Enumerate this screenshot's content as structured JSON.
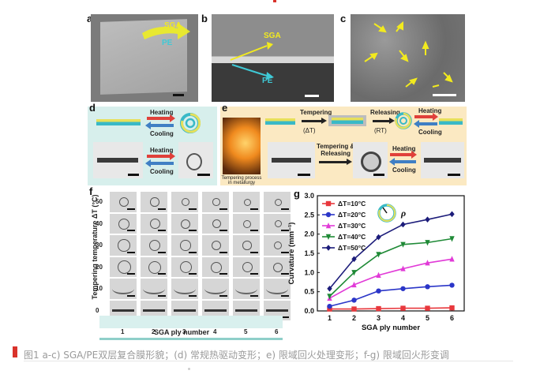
{
  "panels": {
    "a": {
      "letter": "a",
      "sga": "SGA",
      "pe": "PE"
    },
    "b": {
      "letter": "b",
      "sga": "SGA",
      "pe": "PE"
    },
    "c": {
      "letter": "c"
    },
    "d": {
      "letter": "d",
      "heating": "Heating",
      "cooling": "Cooling",
      "heating2": "Heating",
      "cooling2": "Cooling"
    },
    "e": {
      "letter": "e",
      "tempering": "Tempering",
      "delta_t": "(ΔT)",
      "releasing": "Releasing",
      "rt": "(RT)",
      "heating": "Heating",
      "cooling": "Cooling",
      "tempering_releasing": "Tempering &\nReleasing",
      "heating2": "Heating",
      "cooling2": "Cooling",
      "metallurgy": "Tempering process\nin metallurgy"
    },
    "f": {
      "letter": "f",
      "ylabel": "Tempering temperature ΔT (°C)",
      "xlabel": "SGA ply number",
      "rows": [
        "50",
        "40",
        "30",
        "20",
        "10",
        "0"
      ],
      "cols": [
        "1",
        "2",
        "3",
        "4",
        "5",
        "6"
      ]
    }
  },
  "chart_data": {
    "type": "line",
    "panel_letter": "g",
    "xlabel": "SGA ply number",
    "ylabel": "Curvature (mm⁻¹)",
    "x": [
      1,
      2,
      3,
      4,
      5,
      6
    ],
    "xlim": [
      0.5,
      6.5
    ],
    "ylim": [
      0,
      3.0
    ],
    "yticks": [
      "0.0",
      "0.5",
      "1.0",
      "1.5",
      "2.0",
      "2.5",
      "3.0"
    ],
    "xticks": [
      "1",
      "2",
      "3",
      "4",
      "5",
      "6"
    ],
    "legend_position": "top-left",
    "rho": "ρ",
    "series": [
      {
        "name": "ΔT=10°C",
        "color": "#e8383d",
        "marker": "square",
        "values": [
          0.05,
          0.05,
          0.06,
          0.07,
          0.07,
          0.08
        ]
      },
      {
        "name": "ΔT=20°C",
        "color": "#2b36c8",
        "marker": "circle",
        "values": [
          0.12,
          0.28,
          0.52,
          0.58,
          0.63,
          0.67
        ]
      },
      {
        "name": "ΔT=30°C",
        "color": "#e13ad7",
        "marker": "triangle-up",
        "values": [
          0.33,
          0.68,
          0.93,
          1.1,
          1.25,
          1.35
        ]
      },
      {
        "name": "ΔT=40°C",
        "color": "#1f8a36",
        "marker": "triangle-down",
        "values": [
          0.38,
          1.0,
          1.47,
          1.73,
          1.78,
          1.88
        ]
      },
      {
        "name": "ΔT=50°C",
        "color": "#1c1c7a",
        "marker": "diamond",
        "values": [
          0.58,
          1.35,
          1.92,
          2.25,
          2.38,
          2.52
        ]
      }
    ]
  },
  "caption": {
    "text": "图1 a-c) SGA/PE双层复合膜形貌；(d) 常规热驱动变形；e) 限域回火处理变形；f-g) 限域回火形变调"
  }
}
